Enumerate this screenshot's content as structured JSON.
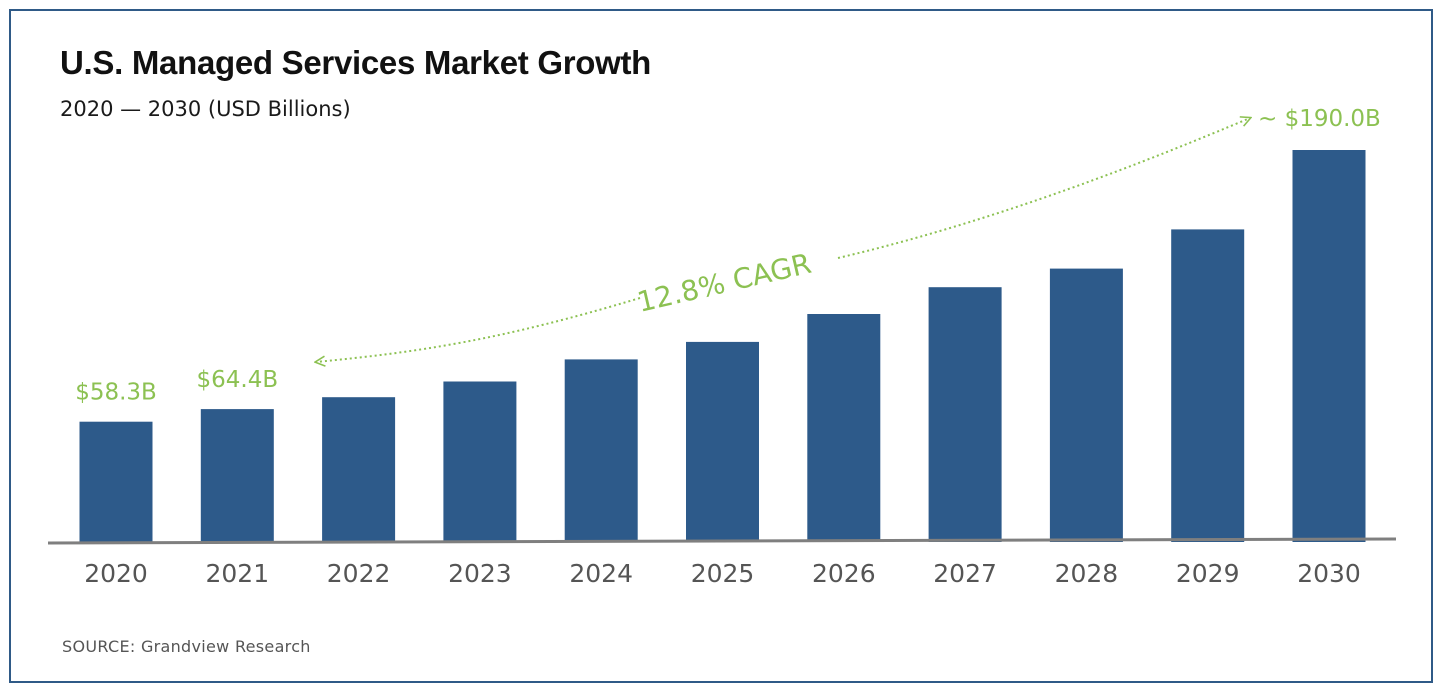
{
  "header": {
    "title": "U.S. Managed Services Market Growth",
    "subtitle": "2020 — 2030 (USD Billions)"
  },
  "footer": {
    "source": "SOURCE: Grandview Research"
  },
  "colors": {
    "bar": "#2d5a8a",
    "accent": "#8cc152",
    "axis": "#7f7f7f",
    "tick_text": "#555555",
    "frame": "#2f5a87"
  },
  "chart_data": {
    "type": "bar",
    "title": "U.S. Managed Services Market Growth",
    "subtitle": "2020 — 2030 (USD Billions)",
    "xlabel": "",
    "ylabel": "",
    "categories": [
      "2020",
      "2021",
      "2022",
      "2023",
      "2024",
      "2025",
      "2026",
      "2027",
      "2028",
      "2029",
      "2030"
    ],
    "values": [
      58.3,
      64.4,
      70.2,
      77.8,
      88.5,
      97.0,
      110.5,
      123.5,
      132.5,
      151.5,
      190.0
    ],
    "ylim": [
      0,
      190
    ],
    "grid": false,
    "legend": "none",
    "data_labels": [
      {
        "category": "2020",
        "text": "$58.3B"
      },
      {
        "category": "2021",
        "text": "$64.4B"
      }
    ],
    "annotations": {
      "cagr": "12.8% CAGR",
      "end_value": "~ $190.0B"
    }
  }
}
